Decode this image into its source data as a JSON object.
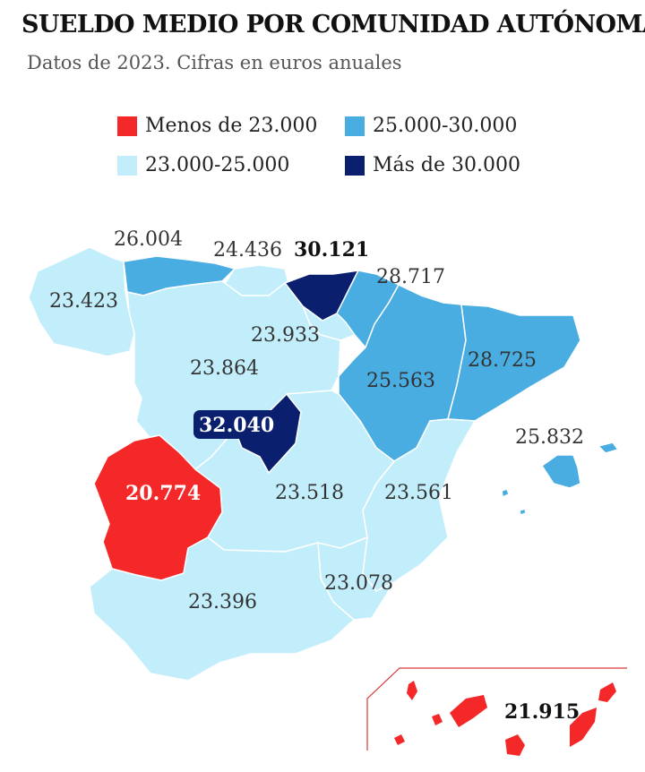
{
  "title": "SUELDO MEDIO POR COMUNIDAD AUTÓNOMA",
  "subtitle": "Datos de 2023. Cifras en euros anuales",
  "colors": {
    "low": "#f42828",
    "mid_low": "#c2edfb",
    "mid_high": "#49ade2",
    "high": "#0a1f6e"
  },
  "legend": [
    {
      "label": "Menos de 23.000",
      "color_key": "low"
    },
    {
      "label": "25.000-30.000",
      "color_key": "mid_high"
    },
    {
      "label": "23.000-25.000",
      "color_key": "mid_low"
    },
    {
      "label": "Más de 30.000",
      "color_key": "high"
    }
  ],
  "regions": [
    {
      "id": "galicia",
      "value": "23.423",
      "range": "mid_low"
    },
    {
      "id": "asturias",
      "value": "26.004",
      "range": "mid_high"
    },
    {
      "id": "cantabria",
      "value": "24.436",
      "range": "mid_low"
    },
    {
      "id": "pais-vasco",
      "value": "30.121",
      "range": "high"
    },
    {
      "id": "navarra",
      "value": "28.717",
      "range": "mid_high"
    },
    {
      "id": "la-rioja",
      "value": "23.933",
      "range": "mid_low"
    },
    {
      "id": "castilla-y-leon",
      "value": "23.864",
      "range": "mid_low"
    },
    {
      "id": "aragon",
      "value": "25.563",
      "range": "mid_high"
    },
    {
      "id": "cataluna",
      "value": "28.725",
      "range": "mid_high"
    },
    {
      "id": "madrid",
      "value": "32.040",
      "range": "high"
    },
    {
      "id": "baleares",
      "value": "25.832",
      "range": "mid_high"
    },
    {
      "id": "extremadura",
      "value": "20.774",
      "range": "low"
    },
    {
      "id": "castilla-la-mancha",
      "value": "23.518",
      "range": "mid_low"
    },
    {
      "id": "valencia",
      "value": "23.561",
      "range": "mid_low"
    },
    {
      "id": "murcia",
      "value": "23.078",
      "range": "mid_low"
    },
    {
      "id": "andalucia",
      "value": "23.396",
      "range": "mid_low"
    },
    {
      "id": "canarias",
      "value": "21.915",
      "range": "low"
    }
  ]
}
